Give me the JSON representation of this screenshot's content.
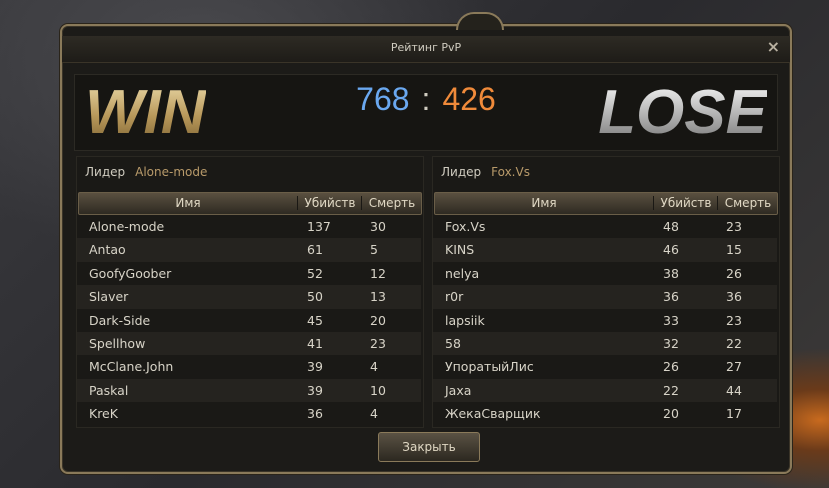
{
  "window": {
    "title": "Рейтинг PvP",
    "close_icon": "×"
  },
  "score": {
    "win_label": "WIN",
    "lose_label": "LOSE",
    "left": "768",
    "separator": ":",
    "right": "426",
    "colors": {
      "left": "#6aa8f0",
      "right": "#f08a3a"
    }
  },
  "columns": {
    "name": "Имя",
    "kills": "Убийств",
    "deaths": "Смерть"
  },
  "teams": [
    {
      "leader_label": "Лидер",
      "leader": "Alone-mode",
      "rows": [
        {
          "name": "Alone-mode",
          "kills": "137",
          "deaths": "30"
        },
        {
          "name": "Antao",
          "kills": "61",
          "deaths": "5"
        },
        {
          "name": "GoofyGoober",
          "kills": "52",
          "deaths": "12"
        },
        {
          "name": "Slaver",
          "kills": "50",
          "deaths": "13"
        },
        {
          "name": "Dark-Side",
          "kills": "45",
          "deaths": "20"
        },
        {
          "name": "Spellhow",
          "kills": "41",
          "deaths": "23"
        },
        {
          "name": "McClane.John",
          "kills": "39",
          "deaths": "4"
        },
        {
          "name": "Paskal",
          "kills": "39",
          "deaths": "10"
        },
        {
          "name": "KreK",
          "kills": "36",
          "deaths": "4"
        }
      ]
    },
    {
      "leader_label": "Лидер",
      "leader": "Fox.Vs",
      "rows": [
        {
          "name": "Fox.Vs",
          "kills": "48",
          "deaths": "23"
        },
        {
          "name": "KINS",
          "kills": "46",
          "deaths": "15"
        },
        {
          "name": "nelya",
          "kills": "38",
          "deaths": "26"
        },
        {
          "name": "r0r",
          "kills": "36",
          "deaths": "36"
        },
        {
          "name": "lapsiik",
          "kills": "33",
          "deaths": "23"
        },
        {
          "name": "58",
          "kills": "32",
          "deaths": "22"
        },
        {
          "name": "УпоратыйЛис",
          "kills": "26",
          "deaths": "27"
        },
        {
          "name": "Jaxa",
          "kills": "22",
          "deaths": "44"
        },
        {
          "name": "ЖекаСварщик",
          "kills": "20",
          "deaths": "17"
        }
      ]
    }
  ],
  "footer": {
    "close_label": "Закрыть"
  }
}
